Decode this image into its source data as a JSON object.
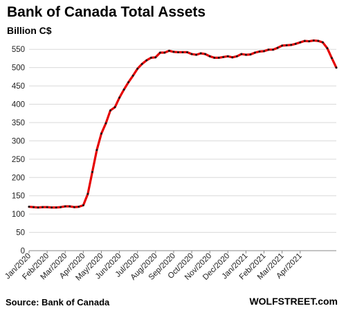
{
  "header": {
    "title": "Bank of Canada Total Assets",
    "subtitle": "Billion C$"
  },
  "footer": {
    "source": "Source: Bank of Canada",
    "brand": "WOLFSTREET.com"
  },
  "colors": {
    "line": "#e60000",
    "marker": "#1a1a1a",
    "grid": "#d9d9d9",
    "axis": "#888888"
  },
  "chart_data": {
    "type": "line",
    "title": "Bank of Canada Total Assets",
    "ylabel": "Billion C$",
    "xlabel": "",
    "ylim": [
      0,
      575
    ],
    "yticks": [
      0,
      50,
      100,
      150,
      200,
      250,
      300,
      350,
      400,
      450,
      500,
      550
    ],
    "grid": true,
    "legend": "none",
    "xticks": [
      "Jan/2020",
      "Feb/2020",
      "Mar/2020",
      "Apr/2020",
      "May/2020",
      "Jun/2020",
      "Jul/2020",
      "Aug/2020",
      "Sep/2020",
      "Oct/2020",
      "Nov/2020",
      "Dec/2020",
      "Jan/2021",
      "Feb/2021",
      "Mar/2021",
      "Apr/2021"
    ],
    "xtick_week_index": [
      0,
      4,
      8,
      12,
      16,
      20,
      24,
      28,
      32,
      36,
      40,
      44,
      48,
      52,
      56,
      60
    ],
    "series": [
      {
        "values": [
          120,
          119,
          118,
          119,
          119,
          118,
          118,
          119,
          121,
          121,
          119,
          120,
          124,
          155,
          215,
          275,
          320,
          348,
          383,
          392,
          418,
          440,
          460,
          478,
          497,
          510,
          520,
          527,
          528,
          541,
          541,
          546,
          543,
          542,
          542,
          542,
          537,
          535,
          539,
          537,
          531,
          527,
          527,
          529,
          531,
          528,
          531,
          537,
          535,
          536,
          541,
          544,
          545,
          549,
          549,
          554,
          560,
          561,
          562,
          565,
          569,
          573,
          572,
          574,
          573,
          569,
          553,
          526,
          500
        ]
      }
    ]
  }
}
